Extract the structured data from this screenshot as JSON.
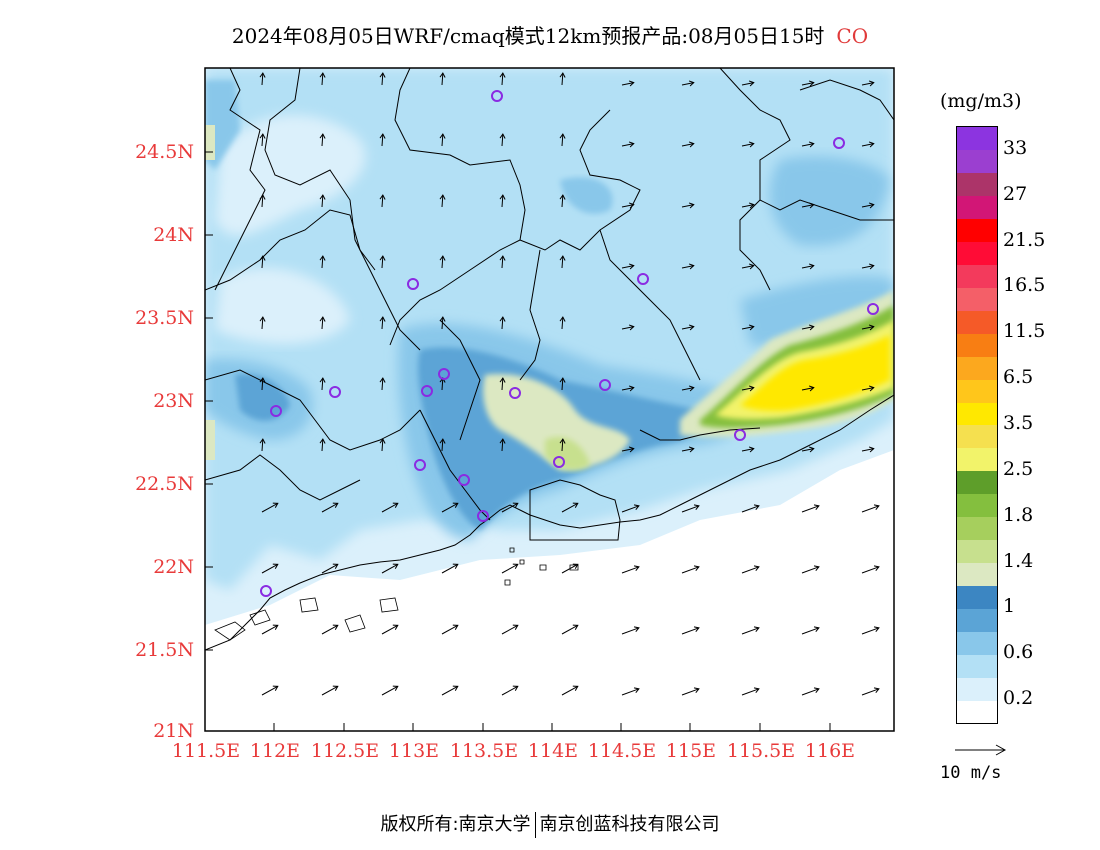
{
  "title": "2024年08月05日WRF/cmaq模式12km预报产品:08月05日15时",
  "species": "CO",
  "units": "(mg/m3)",
  "lat_labels": [
    "24.5N",
    "24N",
    "23.5N",
    "23N",
    "22.5N",
    "22N",
    "21.5N",
    "21N"
  ],
  "lon_labels": [
    "111.5E",
    "112E",
    "112.5E",
    "113E",
    "113.5E",
    "114E",
    "114.5E",
    "115E",
    "115.5E",
    "116E"
  ],
  "colorbar": {
    "colors": [
      "#ffffff",
      "#dbf0fb",
      "#b3e0f5",
      "#89c7ea",
      "#5ba4d6",
      "#3c86c2",
      "#dce8c2",
      "#c7e08e",
      "#a6cf5d",
      "#84bf3e",
      "#5e9e2a",
      "#f2f36a",
      "#f5e04f",
      "#ffe800",
      "#ffc61b",
      "#fca81e",
      "#f87e13",
      "#f55a28",
      "#f45f68",
      "#f33a5c",
      "#ff0c36",
      "#ff0000",
      "#d21676",
      "#ac3469",
      "#9b3fd0",
      "#8c34e0"
    ],
    "labels": [
      "0.2",
      "0.6",
      "1",
      "1.4",
      "1.8",
      "2.5",
      "3.5",
      "6.5",
      "11.5",
      "16.5",
      "21.5",
      "27",
      "33"
    ]
  },
  "vector_ref_label": "10 m/s",
  "stations_count_note": "",
  "footer": {
    "left": "版权所有:南京大学",
    "right": "南京创蓝科技有限公司"
  }
}
